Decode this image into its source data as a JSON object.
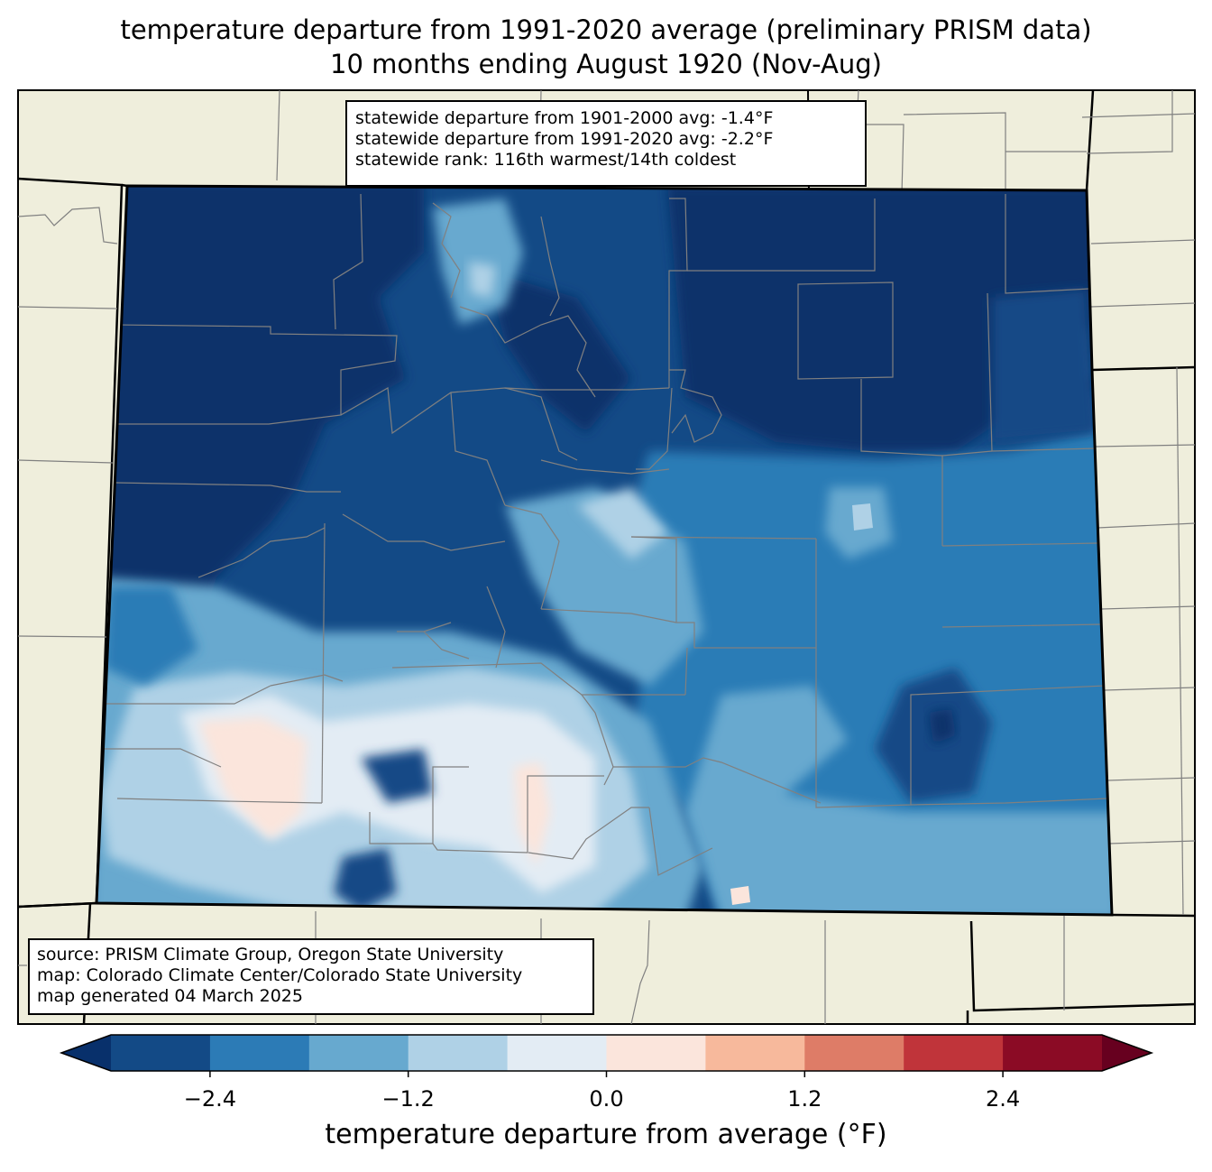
{
  "title": {
    "line1": "temperature departure from 1991-2020 average (preliminary PRISM data)",
    "line2": "10 months ending August 1920 (Nov-Aug)"
  },
  "stats": {
    "line1": "statewide departure from 1901-2000 avg: -1.4°F",
    "line2": "statewide departure from 1991-2020 avg: -2.2°F",
    "line3": "statewide rank: 116th warmest/14th coldest"
  },
  "source": {
    "line1": "source: PRISM Climate Group, Oregon State University",
    "line2": "map: Colorado Climate Center/Colorado State University",
    "line3": "map generated 04 March 2025"
  },
  "colorbar": {
    "label": "temperature departure from average (°F)",
    "ticks": [
      "−2.4",
      "−1.2",
      "0.0",
      "1.2",
      "2.4"
    ],
    "tick_values": [
      -2.4,
      -1.2,
      0.0,
      1.2,
      2.4
    ],
    "range": [
      -3.0,
      3.0
    ],
    "step": 0.6,
    "extend": "both",
    "colors": [
      "#08306b",
      "#134a86",
      "#2c7bb6",
      "#67a9cf",
      "#afd1e6",
      "#e3ecf4",
      "#fbe5dc",
      "#f7b99c",
      "#de7c67",
      "#c0343a",
      "#8b0b25",
      "#67001f"
    ]
  },
  "map": {
    "land_color": "#efeedc",
    "border_color": "#000000",
    "county_color": "#808080"
  }
}
